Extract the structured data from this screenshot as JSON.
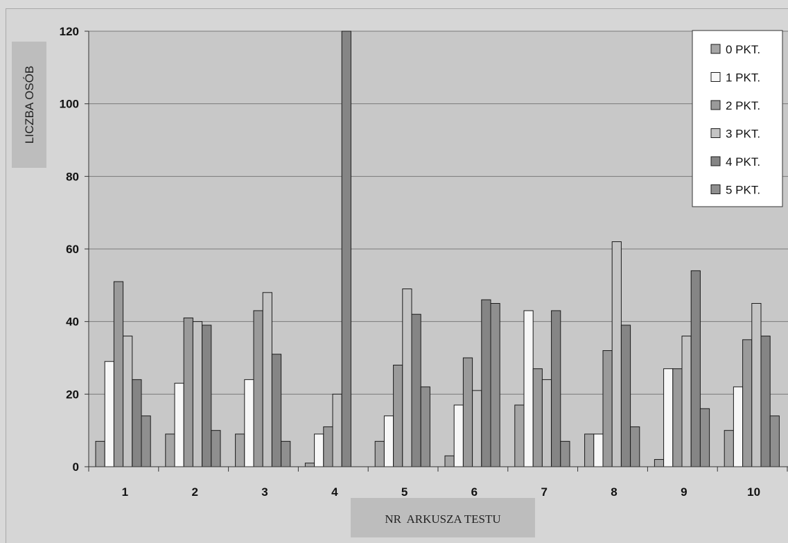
{
  "chart_data": {
    "type": "bar",
    "xlabel": "NR  ARKUSZA TESTU",
    "ylabel": "LICZBA OSÓB",
    "ylim": [
      0,
      120
    ],
    "yticks": [
      0,
      20,
      40,
      60,
      80,
      100,
      120
    ],
    "grid": true,
    "legend_position": "top-right",
    "categories": [
      "1",
      "2",
      "3",
      "4",
      "5",
      "6",
      "7",
      "8",
      "9",
      "10"
    ],
    "series": [
      {
        "name": "0 PKT.",
        "color": "#a6a6a6",
        "values": [
          7,
          9,
          9,
          1,
          7,
          3,
          17,
          9,
          2,
          10
        ]
      },
      {
        "name": "1 PKT.",
        "color": "#f7f7f7",
        "values": [
          29,
          23,
          24,
          9,
          14,
          17,
          43,
          9,
          27,
          22
        ]
      },
      {
        "name": "2 PKT.",
        "color": "#9a9a9a",
        "values": [
          51,
          41,
          43,
          11,
          28,
          30,
          27,
          32,
          27,
          35
        ]
      },
      {
        "name": "3 PKT.",
        "color": "#c4c4c4",
        "values": [
          36,
          40,
          48,
          20,
          49,
          21,
          24,
          62,
          36,
          45
        ]
      },
      {
        "name": "4 PKT.",
        "color": "#858585",
        "values": [
          24,
          39,
          31,
          120,
          42,
          46,
          43,
          39,
          54,
          36
        ]
      },
      {
        "name": "5 PKT.",
        "color": "#8f8f8f",
        "values": [
          14,
          10,
          7,
          0,
          22,
          45,
          7,
          11,
          16,
          14
        ]
      }
    ]
  }
}
